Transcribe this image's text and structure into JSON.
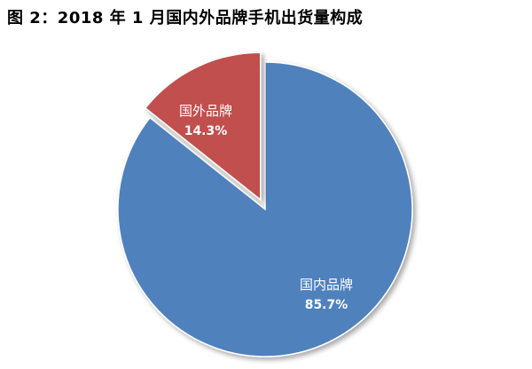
{
  "chart_data": {
    "type": "pie",
    "title": "图 2：2018 年 1 月国内外品牌手机出货量构成",
    "slices": [
      {
        "name": "国内品牌",
        "value": 85.7,
        "label": "85.7%",
        "color": "#4f81bd"
      },
      {
        "name": "国外品牌",
        "value": 14.3,
        "label": "14.3%",
        "color": "#c0504d",
        "exploded": true
      }
    ],
    "legend": "none"
  }
}
